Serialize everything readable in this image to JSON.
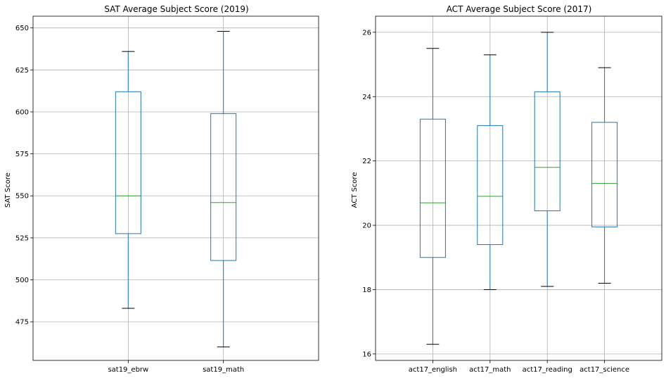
{
  "chart_data": [
    {
      "type": "box",
      "title": "SAT Average Subject Score (2019)",
      "xlabel": "",
      "ylabel": "SAT Score",
      "ylim": [
        452,
        657
      ],
      "yticks": [
        475,
        500,
        525,
        550,
        575,
        600,
        625,
        650
      ],
      "grid": true,
      "categories": [
        "sat19_ebrw",
        "sat19_math"
      ],
      "boxes": [
        {
          "whisker_low": 483,
          "q1": 527.5,
          "median": 550,
          "q3": 612,
          "whisker_high": 636
        },
        {
          "whisker_low": 460,
          "q1": 511.5,
          "median": 546,
          "q3": 599,
          "whisker_high": 648
        }
      ]
    },
    {
      "type": "box",
      "title": "ACT Average Subject Score (2017)",
      "xlabel": "",
      "ylabel": "ACT Score",
      "ylim": [
        15.8,
        26.5
      ],
      "yticks": [
        16,
        18,
        20,
        22,
        24,
        26
      ],
      "grid": true,
      "categories": [
        "act17_english",
        "act17_math",
        "act17_reading",
        "act17_science"
      ],
      "boxes": [
        {
          "whisker_low": 16.3,
          "q1": 19.0,
          "median": 20.7,
          "q3": 23.3,
          "whisker_high": 25.5
        },
        {
          "whisker_low": 18.0,
          "q1": 19.4,
          "median": 20.9,
          "q3": 23.1,
          "whisker_high": 25.3
        },
        {
          "whisker_low": 18.1,
          "q1": 20.45,
          "median": 21.8,
          "q3": 24.15,
          "whisker_high": 26.0
        },
        {
          "whisker_low": 18.2,
          "q1": 19.95,
          "median": 21.3,
          "q3": 23.2,
          "whisker_high": 24.9
        }
      ]
    }
  ]
}
